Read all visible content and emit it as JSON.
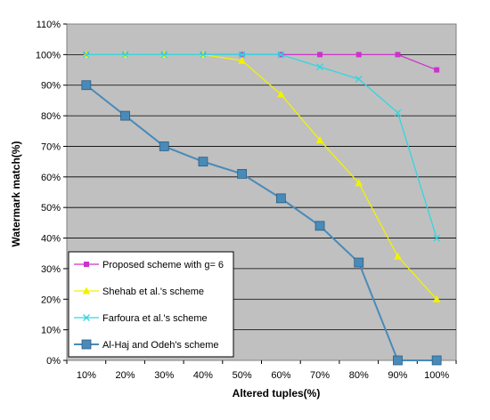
{
  "chart_data": {
    "type": "line",
    "xlabel": "Altered tuples(%)",
    "ylabel": "Watermark match(%)",
    "categories": [
      "10%",
      "20%",
      "30%",
      "40%",
      "50%",
      "60%",
      "70%",
      "80%",
      "90%",
      "100%"
    ],
    "x": [
      10,
      20,
      30,
      40,
      50,
      60,
      70,
      80,
      90,
      100
    ],
    "y_ticks": [
      "0%",
      "10%",
      "20%",
      "30%",
      "40%",
      "50%",
      "60%",
      "70%",
      "80%",
      "90%",
      "100%",
      "110%"
    ],
    "ylim": [
      0,
      110
    ],
    "grid": true,
    "plot_background": "#c0c0c0",
    "legend_position": "bottom-left",
    "series": [
      {
        "name": "Proposed scheme with g= 6",
        "color": "#cc33cc",
        "marker": "square-small",
        "values": [
          100,
          100,
          100,
          100,
          100,
          100,
          100,
          100,
          100,
          95
        ]
      },
      {
        "name": "Shehab et al.'s scheme",
        "color": "#f2f200",
        "marker": "triangle",
        "values": [
          100,
          100,
          100,
          100,
          98,
          87,
          72,
          58,
          34,
          20
        ]
      },
      {
        "name": "Farfoura et al.'s scheme",
        "color": "#33d6e0",
        "marker": "x",
        "values": [
          100,
          100,
          100,
          100,
          100,
          100,
          96,
          92,
          81,
          40
        ]
      },
      {
        "name": "Al-Haj and Odeh's scheme",
        "color": "#4a8ab8",
        "marker": "square-large",
        "values": [
          90,
          80,
          70,
          65,
          61,
          53,
          44,
          32,
          0,
          0
        ]
      }
    ]
  }
}
